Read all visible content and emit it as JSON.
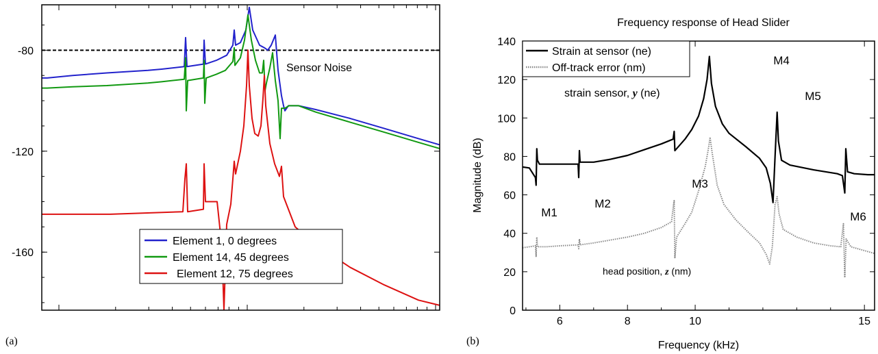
{
  "chart_data": [
    {
      "panel_label": "(a)",
      "type": "line",
      "title": "",
      "xlabel": "",
      "ylabel": "",
      "ylim": [
        -183,
        -62
      ],
      "x_scale": "log",
      "yticks": [
        -80,
        -120,
        -160
      ],
      "grid": false,
      "legend_position": "bottom-center",
      "annotations": [
        {
          "text": "Sensor Noise"
        }
      ],
      "reference_lines": [
        {
          "name": "Sensor Noise",
          "y": -80,
          "style": "dashed",
          "color": "#000000"
        }
      ],
      "series": [
        {
          "name": "Element 1, 0 degrees",
          "color": "#2222cc",
          "points": [
            [
              0,
              -91
            ],
            [
              8,
              -91
            ],
            [
              45,
              -90
            ],
            [
              95,
              -89
            ],
            [
              155,
              -88
            ],
            [
              175,
              -87.5
            ],
            [
              208,
              -86.5
            ],
            [
              210,
              -75
            ],
            [
              212,
              -86.5
            ],
            [
              236,
              -85.5
            ],
            [
              237,
              -76
            ],
            [
              239,
              -85.5
            ],
            [
              255,
              -84
            ],
            [
              270,
              -82
            ],
            [
              279,
              -78
            ],
            [
              281,
              -72
            ],
            [
              283,
              -78
            ],
            [
              290,
              -77
            ],
            [
              298,
              -72
            ],
            [
              303,
              -63
            ],
            [
              308,
              -72
            ],
            [
              318,
              -78
            ],
            [
              325,
              -79
            ],
            [
              330,
              -80
            ],
            [
              335,
              -78
            ],
            [
              341,
              -74
            ],
            [
              345,
              -88
            ],
            [
              350,
              -98
            ],
            [
              353,
              -102
            ],
            [
              355,
              -104
            ],
            [
              360,
              -102
            ],
            [
              375,
              -102
            ],
            [
              400,
              -103.5
            ],
            [
              450,
              -107
            ],
            [
              500,
              -111
            ],
            [
              550,
              -115
            ],
            [
              600,
              -119
            ],
            [
              641,
              -122
            ]
          ]
        },
        {
          "name": "Element 14, 45 degrees",
          "color": "#119911",
          "points": [
            [
              0,
              -95
            ],
            [
              8,
              -95
            ],
            [
              45,
              -94.5
            ],
            [
              95,
              -94
            ],
            [
              155,
              -93
            ],
            [
              175,
              -92.5
            ],
            [
              208,
              -91.5
            ],
            [
              210,
              -83
            ],
            [
              211,
              -104
            ],
            [
              213,
              -92
            ],
            [
              236,
              -91
            ],
            [
              237,
              -84
            ],
            [
              238,
              -101
            ],
            [
              240,
              -91
            ],
            [
              255,
              -89.5
            ],
            [
              268,
              -88
            ],
            [
              279,
              -84.5
            ],
            [
              281,
              -79
            ],
            [
              282,
              -86
            ],
            [
              290,
              -83
            ],
            [
              296,
              -76
            ],
            [
              301,
              -66
            ],
            [
              306,
              -76
            ],
            [
              312,
              -84
            ],
            [
              318,
              -89
            ],
            [
              322,
              -89
            ],
            [
              324,
              -84
            ],
            [
              326,
              -96
            ],
            [
              328,
              -93
            ],
            [
              333,
              -87
            ],
            [
              337,
              -81
            ],
            [
              341,
              -92
            ],
            [
              345,
              -100
            ],
            [
              348,
              -115
            ],
            [
              350,
              -103
            ],
            [
              355,
              -103
            ],
            [
              361,
              -102
            ],
            [
              375,
              -102
            ],
            [
              400,
              -104.5
            ],
            [
              450,
              -108.5
            ],
            [
              500,
              -112.5
            ],
            [
              550,
              -116.5
            ],
            [
              600,
              -120.5
            ],
            [
              641,
              -124
            ]
          ]
        },
        {
          "name": "Element 12, 75 degrees",
          "color": "#dd1111",
          "points": [
            [
              0,
              -145
            ],
            [
              8,
              -145
            ],
            [
              100,
              -145
            ],
            [
              206,
              -144
            ],
            [
              209,
              -131
            ],
            [
              211,
              -125
            ],
            [
              213,
              -144
            ],
            [
              236,
              -143
            ],
            [
              237,
              -125
            ],
            [
              239,
              -140
            ],
            [
              256,
              -140
            ],
            [
              263,
              -158
            ],
            [
              266,
              -183
            ],
            [
              270,
              -149
            ],
            [
              276,
              -141
            ],
            [
              279,
              -131
            ],
            [
              281,
              -124
            ],
            [
              283,
              -129
            ],
            [
              290,
              -120
            ],
            [
              295,
              -110
            ],
            [
              299,
              -94
            ],
            [
              301,
              -80
            ],
            [
              303,
              -94
            ],
            [
              307,
              -107
            ],
            [
              311,
              -113
            ],
            [
              316,
              -114
            ],
            [
              320,
              -110
            ],
            [
              323,
              -99
            ],
            [
              325,
              -90
            ],
            [
              327,
              -102
            ],
            [
              333,
              -117
            ],
            [
              340,
              -125
            ],
            [
              347,
              -130
            ],
            [
              350,
              -126
            ],
            [
              353,
              -138
            ],
            [
              370,
              -150
            ],
            [
              400,
              -157
            ],
            [
              450,
              -166
            ],
            [
              500,
              -173
            ],
            [
              550,
              -179
            ],
            [
              610,
              -183
            ]
          ]
        }
      ]
    },
    {
      "panel_label": "(b)",
      "type": "line",
      "title": "Frequency response of Head Slider",
      "xlabel": "Frequency (kHz)",
      "ylabel": "Magnitude (dB)",
      "xlim": [
        4.9,
        15.3
      ],
      "ylim": [
        0,
        140
      ],
      "xticks": [
        6,
        8,
        10,
        15
      ],
      "yticks": [
        0,
        20,
        40,
        60,
        80,
        100,
        120,
        140
      ],
      "grid": false,
      "legend_position": "top-left",
      "annotations": [
        {
          "text": "M1"
        },
        {
          "text": "M2"
        },
        {
          "text": "M3"
        },
        {
          "text": "M4"
        },
        {
          "text": "M5"
        },
        {
          "text": "M6"
        },
        {
          "text_prefix": "strain sensor, ",
          "symbol": "y",
          "text_suffix": " (ne)"
        },
        {
          "text_prefix": "head position, ",
          "symbol": "z",
          "text_suffix": " (nm)"
        }
      ],
      "series": [
        {
          "name": "Strain at sensor (ne)",
          "color": "#000000",
          "style": "solid",
          "points": [
            [
              4.9,
              74.5
            ],
            [
              5.1,
              74
            ],
            [
              5.28,
              69
            ],
            [
              5.3,
              65
            ],
            [
              5.32,
              84
            ],
            [
              5.34,
              78
            ],
            [
              5.4,
              76
            ],
            [
              5.8,
              76
            ],
            [
              6.3,
              76
            ],
            [
              6.54,
              76
            ],
            [
              6.56,
              69
            ],
            [
              6.58,
              83
            ],
            [
              6.6,
              77
            ],
            [
              7.0,
              77
            ],
            [
              7.5,
              78.5
            ],
            [
              8.0,
              80.5
            ],
            [
              8.5,
              83.5
            ],
            [
              9.0,
              86.5
            ],
            [
              9.35,
              89
            ],
            [
              9.38,
              93
            ],
            [
              9.4,
              83
            ],
            [
              9.45,
              84
            ],
            [
              9.7,
              89
            ],
            [
              9.9,
              94
            ],
            [
              10.1,
              101
            ],
            [
              10.25,
              110
            ],
            [
              10.35,
              120
            ],
            [
              10.42,
              132
            ],
            [
              10.48,
              118
            ],
            [
              10.6,
              106
            ],
            [
              10.8,
              97
            ],
            [
              11.0,
              92
            ],
            [
              11.5,
              85
            ],
            [
              11.9,
              79
            ],
            [
              12.1,
              74
            ],
            [
              12.22,
              66
            ],
            [
              12.3,
              56
            ],
            [
              12.36,
              80
            ],
            [
              12.42,
              103
            ],
            [
              12.46,
              88
            ],
            [
              12.55,
              78
            ],
            [
              12.8,
              75.5
            ],
            [
              13.5,
              73
            ],
            [
              14.2,
              71
            ],
            [
              14.35,
              70
            ],
            [
              14.42,
              61
            ],
            [
              14.45,
              84
            ],
            [
              14.5,
              72
            ],
            [
              14.7,
              71
            ],
            [
              15.1,
              70.5
            ],
            [
              15.3,
              70.5
            ]
          ]
        },
        {
          "name": "Off-track error (nm)",
          "color": "#888888",
          "style": "dotted",
          "points": [
            [
              4.9,
              32.5
            ],
            [
              5.1,
              33
            ],
            [
              5.28,
              33.5
            ],
            [
              5.3,
              28
            ],
            [
              5.32,
              38
            ],
            [
              5.34,
              33
            ],
            [
              5.6,
              33
            ],
            [
              6.0,
              33.5
            ],
            [
              6.54,
              34
            ],
            [
              6.56,
              32
            ],
            [
              6.58,
              37
            ],
            [
              6.6,
              34
            ],
            [
              7.0,
              35
            ],
            [
              7.5,
              36.5
            ],
            [
              8.0,
              38
            ],
            [
              8.5,
              40
            ],
            [
              9.0,
              43
            ],
            [
              9.3,
              46
            ],
            [
              9.36,
              55
            ],
            [
              9.38,
              57
            ],
            [
              9.4,
              27
            ],
            [
              9.45,
              38
            ],
            [
              9.7,
              45
            ],
            [
              9.9,
              51
            ],
            [
              10.1,
              62
            ],
            [
              10.3,
              75
            ],
            [
              10.4,
              85
            ],
            [
              10.44,
              90
            ],
            [
              10.5,
              82
            ],
            [
              10.65,
              65
            ],
            [
              10.85,
              55
            ],
            [
              11.2,
              47
            ],
            [
              11.6,
              40
            ],
            [
              11.9,
              35
            ],
            [
              12.1,
              29
            ],
            [
              12.2,
              24
            ],
            [
              12.28,
              33
            ],
            [
              12.36,
              55
            ],
            [
              12.42,
              59
            ],
            [
              12.48,
              50
            ],
            [
              12.6,
              42
            ],
            [
              13.0,
              38
            ],
            [
              13.5,
              35
            ],
            [
              14.0,
              33.5
            ],
            [
              14.3,
              33
            ],
            [
              14.38,
              45
            ],
            [
              14.42,
              17
            ],
            [
              14.46,
              37
            ],
            [
              14.6,
              33
            ],
            [
              15.0,
              31
            ],
            [
              15.3,
              29.5
            ]
          ]
        }
      ]
    }
  ]
}
